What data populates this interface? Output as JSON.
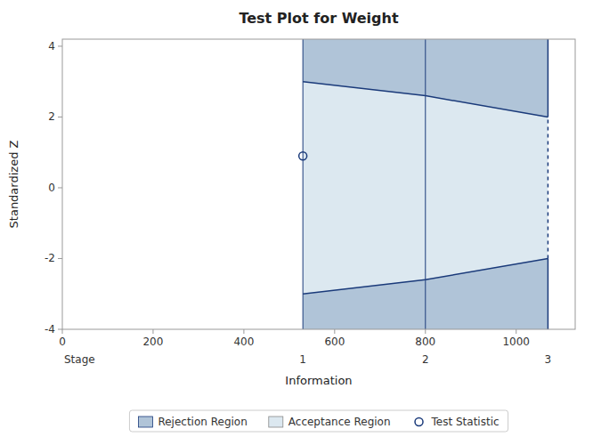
{
  "chart_data": {
    "type": "group_sequential",
    "title": "Test Plot for Weight",
    "xlabel": "Information",
    "ylabel": "Standardized Z",
    "stage_label": "Stage",
    "x": [
      530,
      800,
      1070
    ],
    "categories": [
      "1",
      "2",
      "3"
    ],
    "color": "#1a3a7a",
    "series": [
      {
        "name": "Rejection Region",
        "color": "#b0c4d8",
        "upper": [
          3.0,
          2.6,
          2.0
        ],
        "lower": [
          -3.0,
          -2.6,
          -2.0
        ]
      },
      {
        "name": "Acceptance Region",
        "color": "#dce8f0"
      },
      {
        "name": "Test Statistic",
        "color": "#1a3a7a",
        "x": [
          530
        ],
        "values": [
          0.9
        ],
        "marker": "circle"
      }
    ],
    "xlim": [
      0,
      1130
    ],
    "ylim": [
      -4.0,
      4.2
    ],
    "xticks": [
      0,
      200,
      400,
      600,
      800,
      1000
    ],
    "yticks": [
      -4,
      -2,
      0,
      2,
      4
    ],
    "legend": "bottom"
  }
}
